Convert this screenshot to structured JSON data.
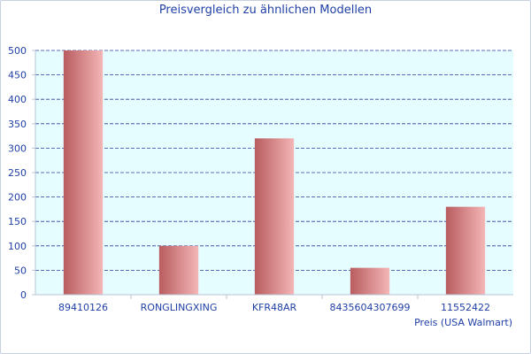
{
  "chart_data": {
    "type": "bar",
    "title": "Preisvergleich zu ähnlichen Modellen",
    "categories": [
      "89410126",
      "RONGLINGXING",
      "KFR48AR",
      "8435604307699",
      "11552422"
    ],
    "values": [
      500,
      100,
      320,
      55,
      180
    ],
    "xlabel": "Preis (USA Walmart)",
    "ylabel": "",
    "ylim": [
      0,
      500
    ],
    "yticks": [
      0,
      50,
      100,
      150,
      200,
      250,
      300,
      350,
      400,
      450,
      500
    ],
    "grid": true,
    "legend": "none",
    "colors": {
      "bar_dark": "#b85c5f",
      "bar_light": "#f4b6b6",
      "plot_background": "#e6fdff",
      "grid": "#2b3f9e",
      "text": "#1f3fa6"
    }
  }
}
